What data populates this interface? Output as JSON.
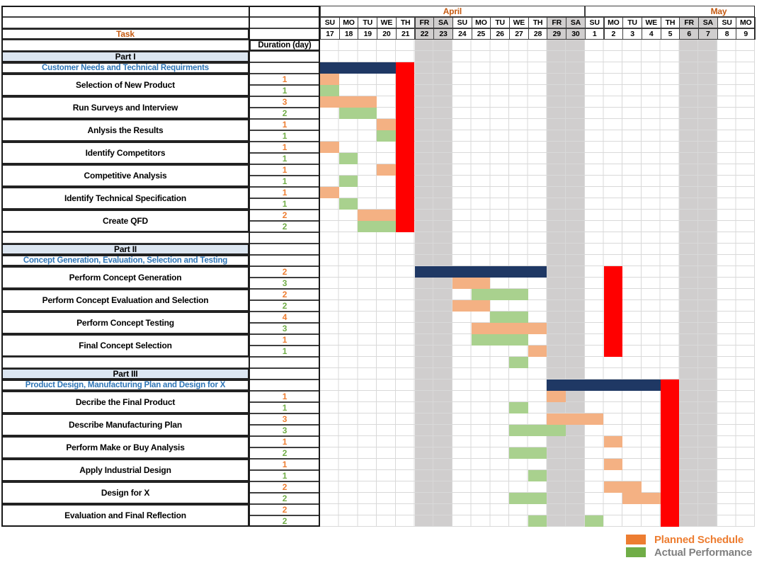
{
  "sheet": {
    "task_label": "Task",
    "duration_label": "Duration (day)",
    "months": [
      {
        "name": "April",
        "cols": 14
      },
      {
        "name": "May",
        "cols": 9
      }
    ],
    "days": [
      {
        "dow": "SU",
        "date": "17",
        "weekend": false
      },
      {
        "dow": "MO",
        "date": "18",
        "weekend": false
      },
      {
        "dow": "TU",
        "date": "19",
        "weekend": false
      },
      {
        "dow": "WE",
        "date": "20",
        "weekend": false
      },
      {
        "dow": "TH",
        "date": "21",
        "weekend": false
      },
      {
        "dow": "FR",
        "date": "22",
        "weekend": true
      },
      {
        "dow": "SA",
        "date": "23",
        "weekend": true
      },
      {
        "dow": "SU",
        "date": "24",
        "weekend": false
      },
      {
        "dow": "MO",
        "date": "25",
        "weekend": false
      },
      {
        "dow": "TU",
        "date": "26",
        "weekend": false
      },
      {
        "dow": "WE",
        "date": "27",
        "weekend": false
      },
      {
        "dow": "TH",
        "date": "28",
        "weekend": false
      },
      {
        "dow": "FR",
        "date": "29",
        "weekend": true
      },
      {
        "dow": "SA",
        "date": "30",
        "weekend": true
      },
      {
        "dow": "SU",
        "date": "1",
        "weekend": false
      },
      {
        "dow": "MO",
        "date": "2",
        "weekend": false
      },
      {
        "dow": "TU",
        "date": "3",
        "weekend": false
      },
      {
        "dow": "WE",
        "date": "4",
        "weekend": false
      },
      {
        "dow": "TH",
        "date": "5",
        "weekend": false
      },
      {
        "dow": "FR",
        "date": "6",
        "weekend": true
      },
      {
        "dow": "SA",
        "date": "7",
        "weekend": true
      },
      {
        "dow": "SU",
        "date": "8",
        "weekend": false
      },
      {
        "dow": "MO",
        "date": "9",
        "weekend": false
      }
    ]
  },
  "colors": {
    "navy": "#1F3864",
    "red": "#FF0000",
    "planned_bar": "#F4B183",
    "actual_bar": "#A9D18E",
    "weekend_band": "#D0CECE",
    "section_bg": "#DCE6F1",
    "subtitle_text": "#2E75B6",
    "header_text": "#C55A11",
    "duration_planned_text": "#ED7D31",
    "duration_actual_text": "#70AD47",
    "grid_line": "#D9D9D9",
    "legend_planned": "#ED7D31",
    "legend_actual": "#70AD47",
    "legend_actual_text": "#808080"
  },
  "legend": {
    "items": [
      {
        "label": "Planned Schedule",
        "color": "#ED7D31",
        "text_color": "#ED7D31"
      },
      {
        "label": "Actual Performance",
        "color": "#70AD47",
        "text_color": "#808080"
      }
    ]
  },
  "sections": [
    {
      "part": "Part I",
      "subtitle": "Customer Needs and Technical Requirments",
      "subtitle_bars": [
        [
          "header",
          0,
          3
        ]
      ],
      "red": {
        "col": 4,
        "from": 0,
        "to": 14
      },
      "tasks": [
        {
          "name": "Selection of New Product",
          "rows": [
            {
              "dur": "1",
              "kind": "planned",
              "bars": [
                [
                  "planned",
                  0,
                  0
                ]
              ]
            },
            {
              "dur": "1",
              "kind": "actual",
              "bars": [
                [
                  "actual",
                  0,
                  0
                ]
              ]
            }
          ]
        },
        {
          "name": "Run Surveys and Interview",
          "rows": [
            {
              "dur": "3",
              "kind": "planned",
              "bars": [
                [
                  "planned",
                  0,
                  2
                ]
              ]
            },
            {
              "dur": "2",
              "kind": "actual",
              "bars": [
                [
                  "actual",
                  1,
                  2
                ]
              ]
            }
          ]
        },
        {
          "name": "Anlysis the Results",
          "rows": [
            {
              "dur": "1",
              "kind": "planned",
              "bars": [
                [
                  "planned",
                  3,
                  3
                ]
              ]
            },
            {
              "dur": "1",
              "kind": "actual",
              "bars": [
                [
                  "actual",
                  3,
                  3
                ]
              ]
            }
          ]
        },
        {
          "name": "Identify Competitors",
          "rows": [
            {
              "dur": "1",
              "kind": "planned",
              "bars": [
                [
                  "planned",
                  0,
                  0
                ]
              ]
            },
            {
              "dur": "1",
              "kind": "actual",
              "bars": [
                [
                  "actual",
                  1,
                  1
                ]
              ]
            }
          ]
        },
        {
          "name": "Competitive Analysis",
          "rows": [
            {
              "dur": "1",
              "kind": "planned",
              "bars": [
                [
                  "planned",
                  3,
                  3
                ]
              ]
            },
            {
              "dur": "1",
              "kind": "actual",
              "bars": [
                [
                  "actual",
                  1,
                  1
                ]
              ]
            }
          ]
        },
        {
          "name": "Identify Technical Specification",
          "rows": [
            {
              "dur": "1",
              "kind": "planned",
              "bars": [
                [
                  "planned",
                  0,
                  0
                ]
              ]
            },
            {
              "dur": "1",
              "kind": "actual",
              "bars": [
                [
                  "actual",
                  1,
                  1
                ]
              ]
            }
          ]
        },
        {
          "name": "Create QFD",
          "rows": [
            {
              "dur": "2",
              "kind": "planned",
              "bars": [
                [
                  "planned",
                  2,
                  3
                ]
              ]
            },
            {
              "dur": "2",
              "kind": "actual",
              "bars": [
                [
                  "actual",
                  2,
                  3
                ]
              ]
            }
          ]
        }
      ],
      "spacer_bars": []
    },
    {
      "part": "Part II",
      "subtitle": "Concept Generation, Evaluation, Selection and Testing",
      "subtitle_bars": [],
      "red": {
        "col": 15,
        "from": 1,
        "to": 8
      },
      "tasks": [
        {
          "name": "Perform Concept Generation",
          "rows": [
            {
              "dur": "2",
              "kind": "planned",
              "bars": [
                [
                  "header",
                  5,
                  11
                ]
              ]
            },
            {
              "dur": "3",
              "kind": "actual",
              "bars": [
                [
                  "planned",
                  7,
                  8
                ]
              ]
            }
          ]
        },
        {
          "name": "Perform Concept Evaluation and Selection",
          "rows": [
            {
              "dur": "2",
              "kind": "planned",
              "bars": [
                [
                  "actual",
                  8,
                  10
                ]
              ]
            },
            {
              "dur": "2",
              "kind": "actual",
              "bars": [
                [
                  "planned",
                  7,
                  8
                ]
              ]
            }
          ]
        },
        {
          "name": "Perform Concept Testing",
          "rows": [
            {
              "dur": "4",
              "kind": "planned",
              "bars": [
                [
                  "actual",
                  9,
                  10
                ]
              ]
            },
            {
              "dur": "3",
              "kind": "actual",
              "bars": [
                [
                  "planned",
                  8,
                  11
                ]
              ]
            }
          ]
        },
        {
          "name": "Final Concept Selection",
          "rows": [
            {
              "dur": "1",
              "kind": "planned",
              "bars": [
                [
                  "actual",
                  8,
                  10
                ]
              ]
            },
            {
              "dur": "1",
              "kind": "actual",
              "bars": [
                [
                  "planned",
                  11,
                  11
                ]
              ]
            }
          ]
        }
      ],
      "spacer_bars": [
        [
          "actual",
          10,
          10
        ]
      ]
    },
    {
      "part": "Part III",
      "subtitle": "Product Design, Manufacturing Plan and Design for X",
      "subtitle_bars": [
        [
          "header",
          12,
          17
        ]
      ],
      "red": {
        "col": 18,
        "from": 0,
        "to": 12
      },
      "tasks": [
        {
          "name": "Decribe the Final Product",
          "rows": [
            {
              "dur": "1",
              "kind": "planned",
              "bars": [
                [
                  "planned",
                  12,
                  12
                ]
              ]
            },
            {
              "dur": "1",
              "kind": "actual",
              "bars": [
                [
                  "actual",
                  10,
                  10
                ]
              ]
            }
          ]
        },
        {
          "name": "Describe Manufacturing Plan",
          "rows": [
            {
              "dur": "3",
              "kind": "planned",
              "bars": [
                [
                  "planned",
                  12,
                  14
                ]
              ]
            },
            {
              "dur": "3",
              "kind": "actual",
              "bars": [
                [
                  "actual",
                  10,
                  12
                ]
              ]
            }
          ]
        },
        {
          "name": "Perform Make or Buy Analysis",
          "rows": [
            {
              "dur": "1",
              "kind": "planned",
              "bars": [
                [
                  "planned",
                  15,
                  15
                ]
              ]
            },
            {
              "dur": "2",
              "kind": "actual",
              "bars": [
                [
                  "actual",
                  10,
                  11
                ]
              ]
            }
          ]
        },
        {
          "name": "Apply Industrial Design",
          "rows": [
            {
              "dur": "1",
              "kind": "planned",
              "bars": [
                [
                  "planned",
                  15,
                  15
                ]
              ]
            },
            {
              "dur": "1",
              "kind": "actual",
              "bars": [
                [
                  "actual",
                  11,
                  11
                ]
              ]
            }
          ]
        },
        {
          "name": "Design for X",
          "rows": [
            {
              "dur": "2",
              "kind": "planned",
              "bars": [
                [
                  "planned",
                  15,
                  16
                ]
              ]
            },
            {
              "dur": "2",
              "kind": "actual",
              "bars": [
                [
                  "actual",
                  10,
                  11
                ],
                [
                  "planned",
                  16,
                  17
                ]
              ]
            }
          ]
        },
        {
          "name": "Evaluation and Final Reflection",
          "rows": [
            {
              "dur": "2",
              "kind": "planned",
              "bars": []
            },
            {
              "dur": "2",
              "kind": "actual",
              "bars": [
                [
                  "actual",
                  11,
                  11
                ],
                [
                  "actual",
                  14,
                  14
                ]
              ]
            }
          ]
        }
      ],
      "spacer_bars": []
    }
  ],
  "chart_data": {
    "type": "table",
    "title": "Gantt schedule, Apr 17 - May 9",
    "legend": [
      "Planned Schedule",
      "Actual Performance"
    ],
    "weekend_shaded_days": [
      "Apr 22",
      "Apr 23",
      "Apr 29",
      "Apr 30",
      "May 6",
      "May 7"
    ],
    "phases": [
      {
        "phase": "Part I - Customer Needs and Technical Requirments",
        "header_bar": "Apr 17-20",
        "red_bar_day": "Apr 21",
        "tasks": [
          {
            "name": "Selection of New Product",
            "planned_days": 1,
            "planned": "Apr 17",
            "actual_days": 1,
            "actual": "Apr 17"
          },
          {
            "name": "Run Surveys and Interview",
            "planned_days": 3,
            "planned": "Apr 17-19",
            "actual_days": 2,
            "actual": "Apr 18-19"
          },
          {
            "name": "Anlysis the Results",
            "planned_days": 1,
            "planned": "Apr 20",
            "actual_days": 1,
            "actual": "Apr 20"
          },
          {
            "name": "Identify Competitors",
            "planned_days": 1,
            "planned": "Apr 17",
            "actual_days": 1,
            "actual": "Apr 18"
          },
          {
            "name": "Competitive Analysis",
            "planned_days": 1,
            "planned": "Apr 20",
            "actual_days": 1,
            "actual": "Apr 18"
          },
          {
            "name": "Identify Technical Specification",
            "planned_days": 1,
            "planned": "Apr 17",
            "actual_days": 1,
            "actual": "Apr 18"
          },
          {
            "name": "Create QFD",
            "planned_days": 2,
            "planned": "Apr 19-20",
            "actual_days": 2,
            "actual": "Apr 19-20"
          }
        ]
      },
      {
        "phase": "Part II - Concept Generation, Evaluation, Selection and Testing",
        "header_bar": "Apr 22-28",
        "red_bar_day": "May 2",
        "tasks": [
          {
            "name": "Perform Concept Generation",
            "planned_days": 2,
            "planned": "Apr 24-25",
            "actual_days": 3,
            "actual": "Apr 25-27"
          },
          {
            "name": "Perform Concept Evaluation and Selection",
            "planned_days": 2,
            "planned": "Apr 24-25",
            "actual_days": 2,
            "actual": "Apr 26-27"
          },
          {
            "name": "Perform Concept Testing",
            "planned_days": 4,
            "planned": "Apr 25-28",
            "actual_days": 3,
            "actual": "Apr 25-27"
          },
          {
            "name": "Final Concept Selection",
            "planned_days": 1,
            "planned": "Apr 28",
            "actual_days": 1,
            "actual": "Apr 27"
          }
        ]
      },
      {
        "phase": "Part III - Product Design, Manufacturing Plan and Design for X",
        "header_bar": "Apr 29-May 4",
        "red_bar_day": "May 5",
        "tasks": [
          {
            "name": "Decribe the Final Product",
            "planned_days": 1,
            "planned": "Apr 29",
            "actual_days": 1,
            "actual": "Apr 27"
          },
          {
            "name": "Describe Manufacturing Plan",
            "planned_days": 3,
            "planned": "Apr 29-May 1",
            "actual_days": 3,
            "actual": "Apr 27-29"
          },
          {
            "name": "Perform Make or Buy Analysis",
            "planned_days": 1,
            "planned": "May 2",
            "actual_days": 2,
            "actual": "Apr 27-28"
          },
          {
            "name": "Apply Industrial Design",
            "planned_days": 1,
            "planned": "May 2",
            "actual_days": 1,
            "actual": "Apr 28"
          },
          {
            "name": "Design for X",
            "planned_days": 2,
            "planned": "May 2-3",
            "actual_days": 2,
            "actual": "Apr 27-28"
          },
          {
            "name": "Evaluation and Final Reflection",
            "planned_days": 2,
            "planned": "May 3-4",
            "actual_days": 2,
            "actual": "Apr 28, May 1"
          }
        ]
      }
    ]
  }
}
